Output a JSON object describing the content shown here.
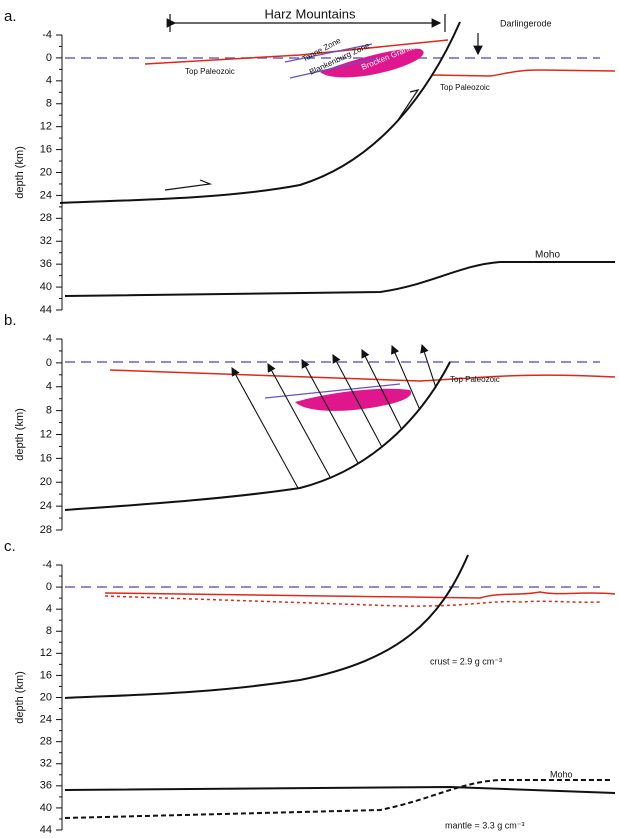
{
  "panels": [
    {
      "label": "a.",
      "axis_label": "depth (km)",
      "ylim": [
        -4,
        44
      ],
      "yticks": [
        -4,
        0,
        4,
        8,
        12,
        16,
        20,
        24,
        28,
        32,
        36,
        40,
        44
      ],
      "annotations": [
        "Harz Mountains",
        "Darlingerode",
        "Top Paleozoic",
        "Top Paleozoic",
        "Tanne Zone",
        "Blankenburg Zone",
        "Brocken Granite",
        "Moho"
      ]
    },
    {
      "label": "b.",
      "axis_label": "depth (km)",
      "ylim": [
        -4,
        28
      ],
      "yticks": [
        -4,
        0,
        4,
        8,
        12,
        16,
        20,
        24,
        28
      ],
      "annotations": [
        "Top Paleozoic"
      ]
    },
    {
      "label": "c.",
      "axis_label": "depth (km)",
      "ylim": [
        -4,
        44
      ],
      "yticks": [
        -4,
        0,
        4,
        8,
        12,
        16,
        20,
        24,
        28,
        32,
        36,
        40,
        44
      ],
      "annotations": [
        "crust = 2.9 g cm⁻³",
        "Moho",
        "mantle = 3.3 g cm⁻³"
      ]
    }
  ]
}
